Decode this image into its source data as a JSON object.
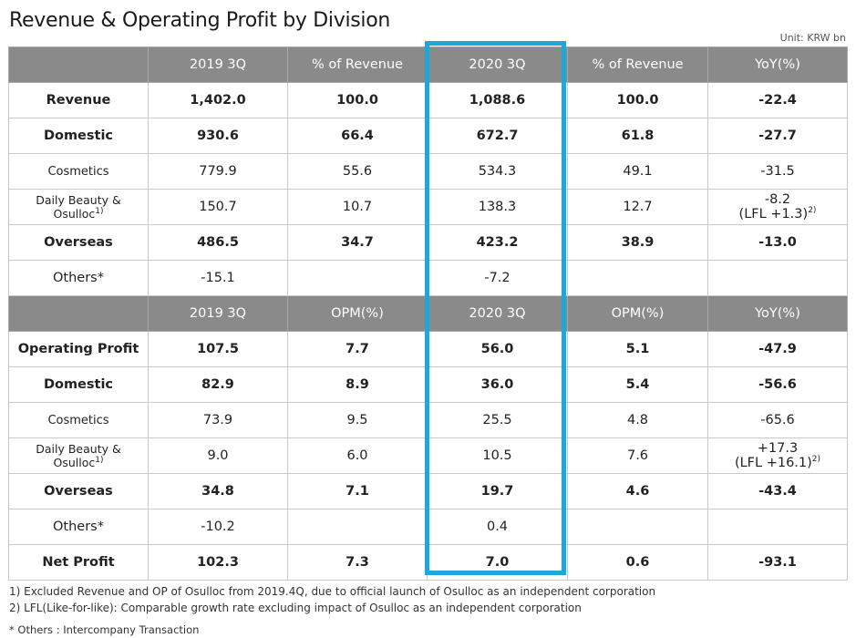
{
  "title": "Revenue & Operating Profit by Division",
  "unit": "Unit: KRW bn",
  "revenue_headers": [
    "",
    "2019 3Q",
    "% of Revenue",
    "2020 3Q",
    "% of Revenue",
    "YoY(%)"
  ],
  "revenue_rows": [
    {
      "label": "Revenue",
      "c1": "1,402.0",
      "c2": "100.0",
      "c3": "1,088.6",
      "c4": "100.0",
      "c5": "-22.4"
    },
    {
      "label": "Domestic",
      "c1": "930.6",
      "c2": "66.4",
      "c3": "672.7",
      "c4": "61.8",
      "c5": "-27.7"
    },
    {
      "label": "Cosmetics",
      "c1": "779.9",
      "c2": "55.6",
      "c3": "534.3",
      "c4": "49.1",
      "c5": "-31.5"
    },
    {
      "label": "Daily Beauty & Osulloc",
      "fn": "1)",
      "c1": "150.7",
      "c2": "10.7",
      "c3": "138.3",
      "c4": "12.7",
      "c5": "-8.2",
      "c5b": "(LFL +1.3)",
      "c5fn": "2)"
    },
    {
      "label": "Overseas",
      "c1": "486.5",
      "c2": "34.7",
      "c3": "423.2",
      "c4": "38.9",
      "c5": "-13.0"
    },
    {
      "label": "Others*",
      "c1": "-15.1",
      "c2": "",
      "c3": "-7.2",
      "c4": "",
      "c5": ""
    }
  ],
  "op_headers": [
    "",
    "2019 3Q",
    "OPM(%)",
    "2020 3Q",
    "OPM(%)",
    "YoY(%)"
  ],
  "op_rows": [
    {
      "label": "Operating Profit",
      "c1": "107.5",
      "c2": "7.7",
      "c3": "56.0",
      "c4": "5.1",
      "c5": "-47.9"
    },
    {
      "label": "Domestic",
      "c1": "82.9",
      "c2": "8.9",
      "c3": "36.0",
      "c4": "5.4",
      "c5": "-56.6"
    },
    {
      "label": "Cosmetics",
      "c1": "73.9",
      "c2": "9.5",
      "c3": "25.5",
      "c4": "4.8",
      "c5": "-65.6"
    },
    {
      "label": "Daily Beauty & Osulloc",
      "fn": "1)",
      "c1": "9.0",
      "c2": "6.0",
      "c3": "10.5",
      "c4": "7.6",
      "c5": "+17.3",
      "c5b": "(LFL +16.1)",
      "c5fn": "2)"
    },
    {
      "label": "Overseas",
      "c1": "34.8",
      "c2": "7.1",
      "c3": "19.7",
      "c4": "4.6",
      "c5": "-43.4"
    },
    {
      "label": "Others*",
      "c1": "-10.2",
      "c2": "",
      "c3": "0.4",
      "c4": "",
      "c5": ""
    },
    {
      "label": "Net Profit",
      "c1": "102.3",
      "c2": "7.3",
      "c3": "7.0",
      "c4": "0.6",
      "c5": "-93.1"
    }
  ],
  "notes": [
    "1) Excluded Revenue and OP of Osulloc from 2019.4Q, due to official launch of Osulloc as an independent corporation",
    "2) LFL(Like-for-like): Comparable growth rate excluding impact of Osulloc as an independent corporation",
    "* Others : Intercompany Transaction"
  ],
  "colors": {
    "header_bg": "#8a8a8a",
    "highlight": "#1ea7d9"
  }
}
